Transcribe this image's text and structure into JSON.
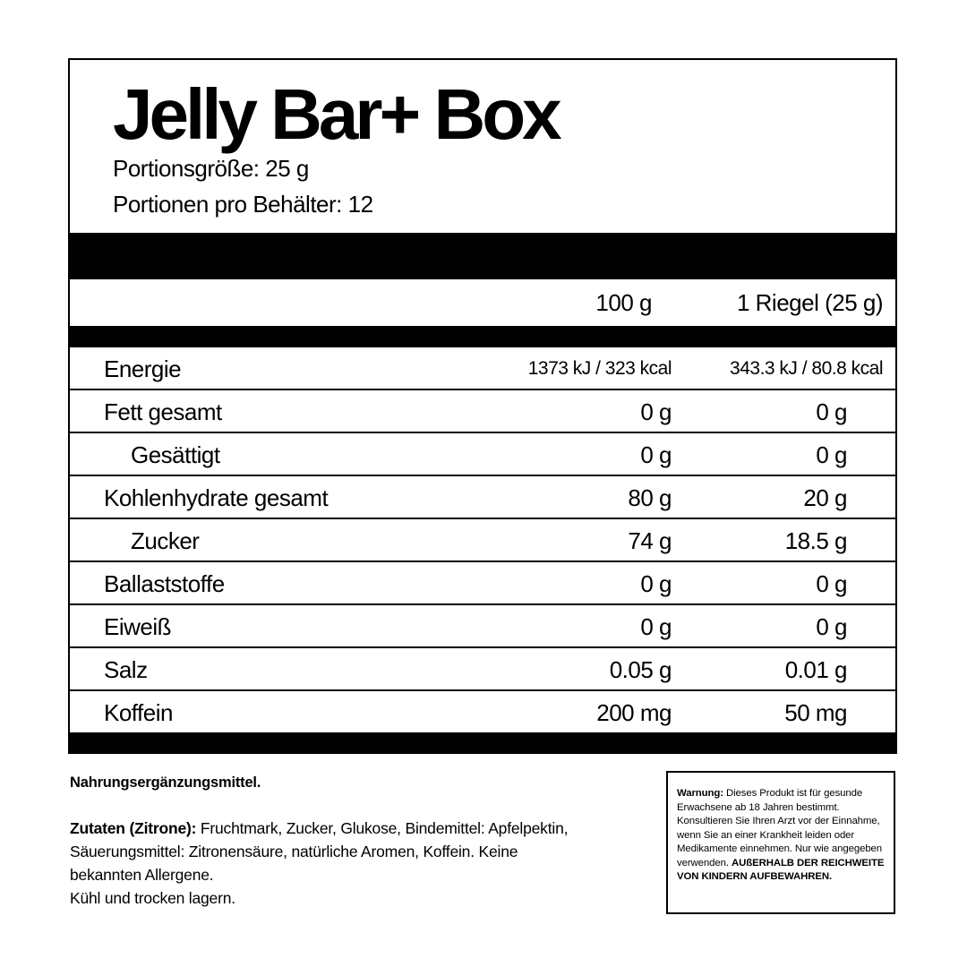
{
  "product": {
    "title": "Jelly Bar+ Box",
    "serving_size": "Portionsgröße: 25 g",
    "servings_per_container": "Portionen pro Behälter: 12"
  },
  "table": {
    "columns": [
      "100 g",
      "1 Riegel (25 g)"
    ],
    "rows": [
      {
        "name": "Energie",
        "per100": "1373 kJ / 323 kcal",
        "perbar": "343.3 kJ / 80.8 kcal"
      },
      {
        "name": "Fett gesamt",
        "per100": "0 g",
        "perbar": "0 g"
      },
      {
        "name": "Gesättigt",
        "per100": "0 g",
        "perbar": "0 g",
        "sub": true
      },
      {
        "name": "Kohlenhydrate gesamt",
        "per100": "80 g",
        "perbar": "20 g"
      },
      {
        "name": "Zucker",
        "per100": "74 g",
        "perbar": "18.5 g",
        "sub": true
      },
      {
        "name": "Ballaststoffe",
        "per100": "0 g",
        "perbar": "0 g"
      },
      {
        "name": "Eiweiß",
        "per100": "0 g",
        "perbar": "0 g"
      },
      {
        "name": "Salz",
        "per100": "0.05 g",
        "perbar": "0.01 g"
      },
      {
        "name": "Koffein",
        "per100": "200 mg",
        "perbar": "50 mg"
      }
    ]
  },
  "footer": {
    "supplement": "Nahrungsergänzungsmittel.",
    "ingredients_label": "Zutaten (Zitrone):",
    "ingredients": " Fruchtmark, Zucker, Glukose, Bindemittel: Apfelpektin, Säuerungsmittel: Zitronensäure, natürliche Aromen, Koffein. Keine bekannten Allergene.",
    "storage": "Kühl und trocken lagern."
  },
  "warning": {
    "label": "Warnung:",
    "text": " Dieses Produkt ist für gesunde Erwachsene ab 18 Jahren bestimmt. Konsultieren Sie Ihren Arzt vor der Einnahme, wenn Sie an einer Krankheit leiden oder Medikamente einnehmen. Nur wie angegeben verwenden. ",
    "bold_text": "AUßERHALB DER REICHWEITE VON KINDERN AUFBEWAHREN."
  }
}
